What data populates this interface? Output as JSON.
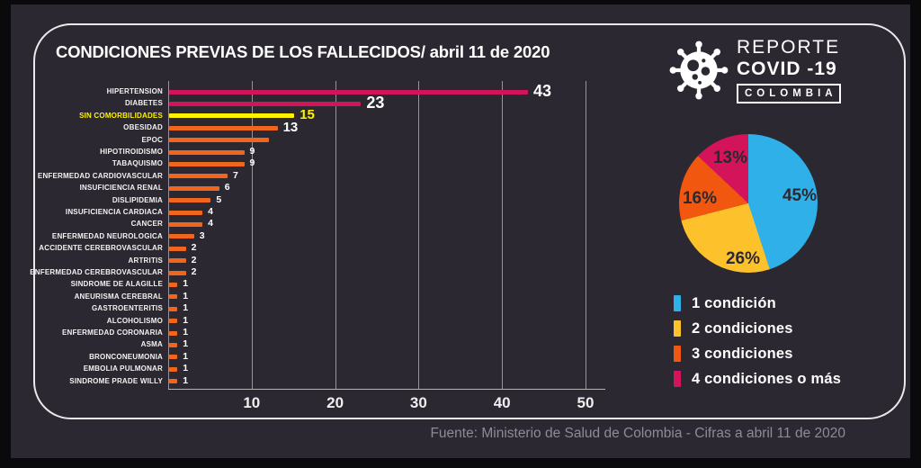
{
  "header": {
    "title": "CONDICIONES PREVIAS DE LOS FALLECIDOS/ abril 11 de 2020"
  },
  "logo": {
    "line1": "REPORTE",
    "line2": "COVID -19",
    "line3": "COLOMBIA",
    "icon": "virus-icon"
  },
  "chart_data": [
    {
      "type": "bar",
      "orientation": "horizontal",
      "title": "CONDICIONES PREVIAS DE LOS FALLECIDOS/ abril 11 de 2020",
      "categories": [
        "HIPERTENSION",
        "DIABETES",
        "SIN COMORBILIDADES",
        "OBESIDAD",
        "EPOC",
        "HIPOTIROIDISMO",
        "TABAQUISMO",
        "ENFERMEDAD CARDIOVASCULAR",
        "INSUFICIENCIA RENAL",
        "DISLIPIDEMIA",
        "INSUFICIENCIA CARDIACA",
        "CANCER",
        "ENFERMEDAD NEUROLOGICA",
        "ACCIDENTE CEREBROVASCULAR",
        "ARTRITIS",
        "ENFERMEDAD CEREBROVASCULAR",
        "SINDROME DE ALAGILLE",
        "ANEURISMA CEREBRAL",
        "GASTROENTERITIS",
        "ALCOHOLISMO",
        "ENFERMEDAD CORONARIA",
        "ASMA",
        "BRONCONEUMONIA",
        "EMBOLIA PULMONAR",
        "SINDROME PRADE WILLY"
      ],
      "values": [
        43,
        23,
        15,
        13,
        12,
        9,
        9,
        7,
        6,
        5,
        4,
        4,
        3,
        2,
        2,
        2,
        1,
        1,
        1,
        1,
        1,
        1,
        1,
        1,
        1
      ],
      "display_labels": [
        "43",
        "23",
        "15",
        "13",
        "",
        "9",
        "9",
        "7",
        "6",
        "5",
        "4",
        "4",
        "3",
        "2",
        "2",
        "2",
        "1",
        "1",
        "1",
        "1",
        "1",
        "1",
        "1",
        "1",
        "1"
      ],
      "bar_colors": [
        "#D4145A",
        "#D4145A",
        "#FFF200",
        "#F0661E",
        "#F0661E",
        "#F0661E",
        "#F0661E",
        "#F0661E",
        "#F0661E",
        "#F0661E",
        "#F0661E",
        "#F0661E",
        "#F0661E",
        "#F0661E",
        "#F0661E",
        "#F0661E",
        "#F0661E",
        "#F0661E",
        "#F0661E",
        "#F0661E",
        "#F0661E",
        "#F0661E",
        "#F0661E",
        "#F0661E",
        "#F0661E"
      ],
      "highlight_index": 2,
      "highlight_color": "#FFF200",
      "x_ticks": [
        10,
        20,
        30,
        40,
        50
      ],
      "xlim": [
        0,
        52
      ],
      "grid": true
    },
    {
      "type": "pie",
      "labels": [
        "1 condición",
        "2 condiciones",
        "3 condiciones",
        "4 condiciones o más"
      ],
      "values": [
        45,
        26,
        16,
        13
      ],
      "display_labels": [
        "45%",
        "26%",
        "16%",
        "13%"
      ],
      "colors": [
        "#2FB0E8",
        "#FCC12B",
        "#F2570F",
        "#D4145A"
      ],
      "start_angle_deg": 0,
      "direction": "clockwise",
      "legend_position": "below"
    }
  ],
  "footer": {
    "source": "Fuente: Ministerio de Salud de Colombia - Cifras a abril 11 de 2020"
  },
  "colors": {
    "panel_background": "#2B2831",
    "outer_background": "#0A0A0C",
    "frame_stroke": "#E9E9E9",
    "text": "#FFFFFF",
    "muted_text": "#8F8B95",
    "highlight_yellow": "#FFF200",
    "crimson": "#D4145A",
    "orange": "#F0661E",
    "blue": "#2FB0E8",
    "golden_yellow": "#FCC12B"
  }
}
